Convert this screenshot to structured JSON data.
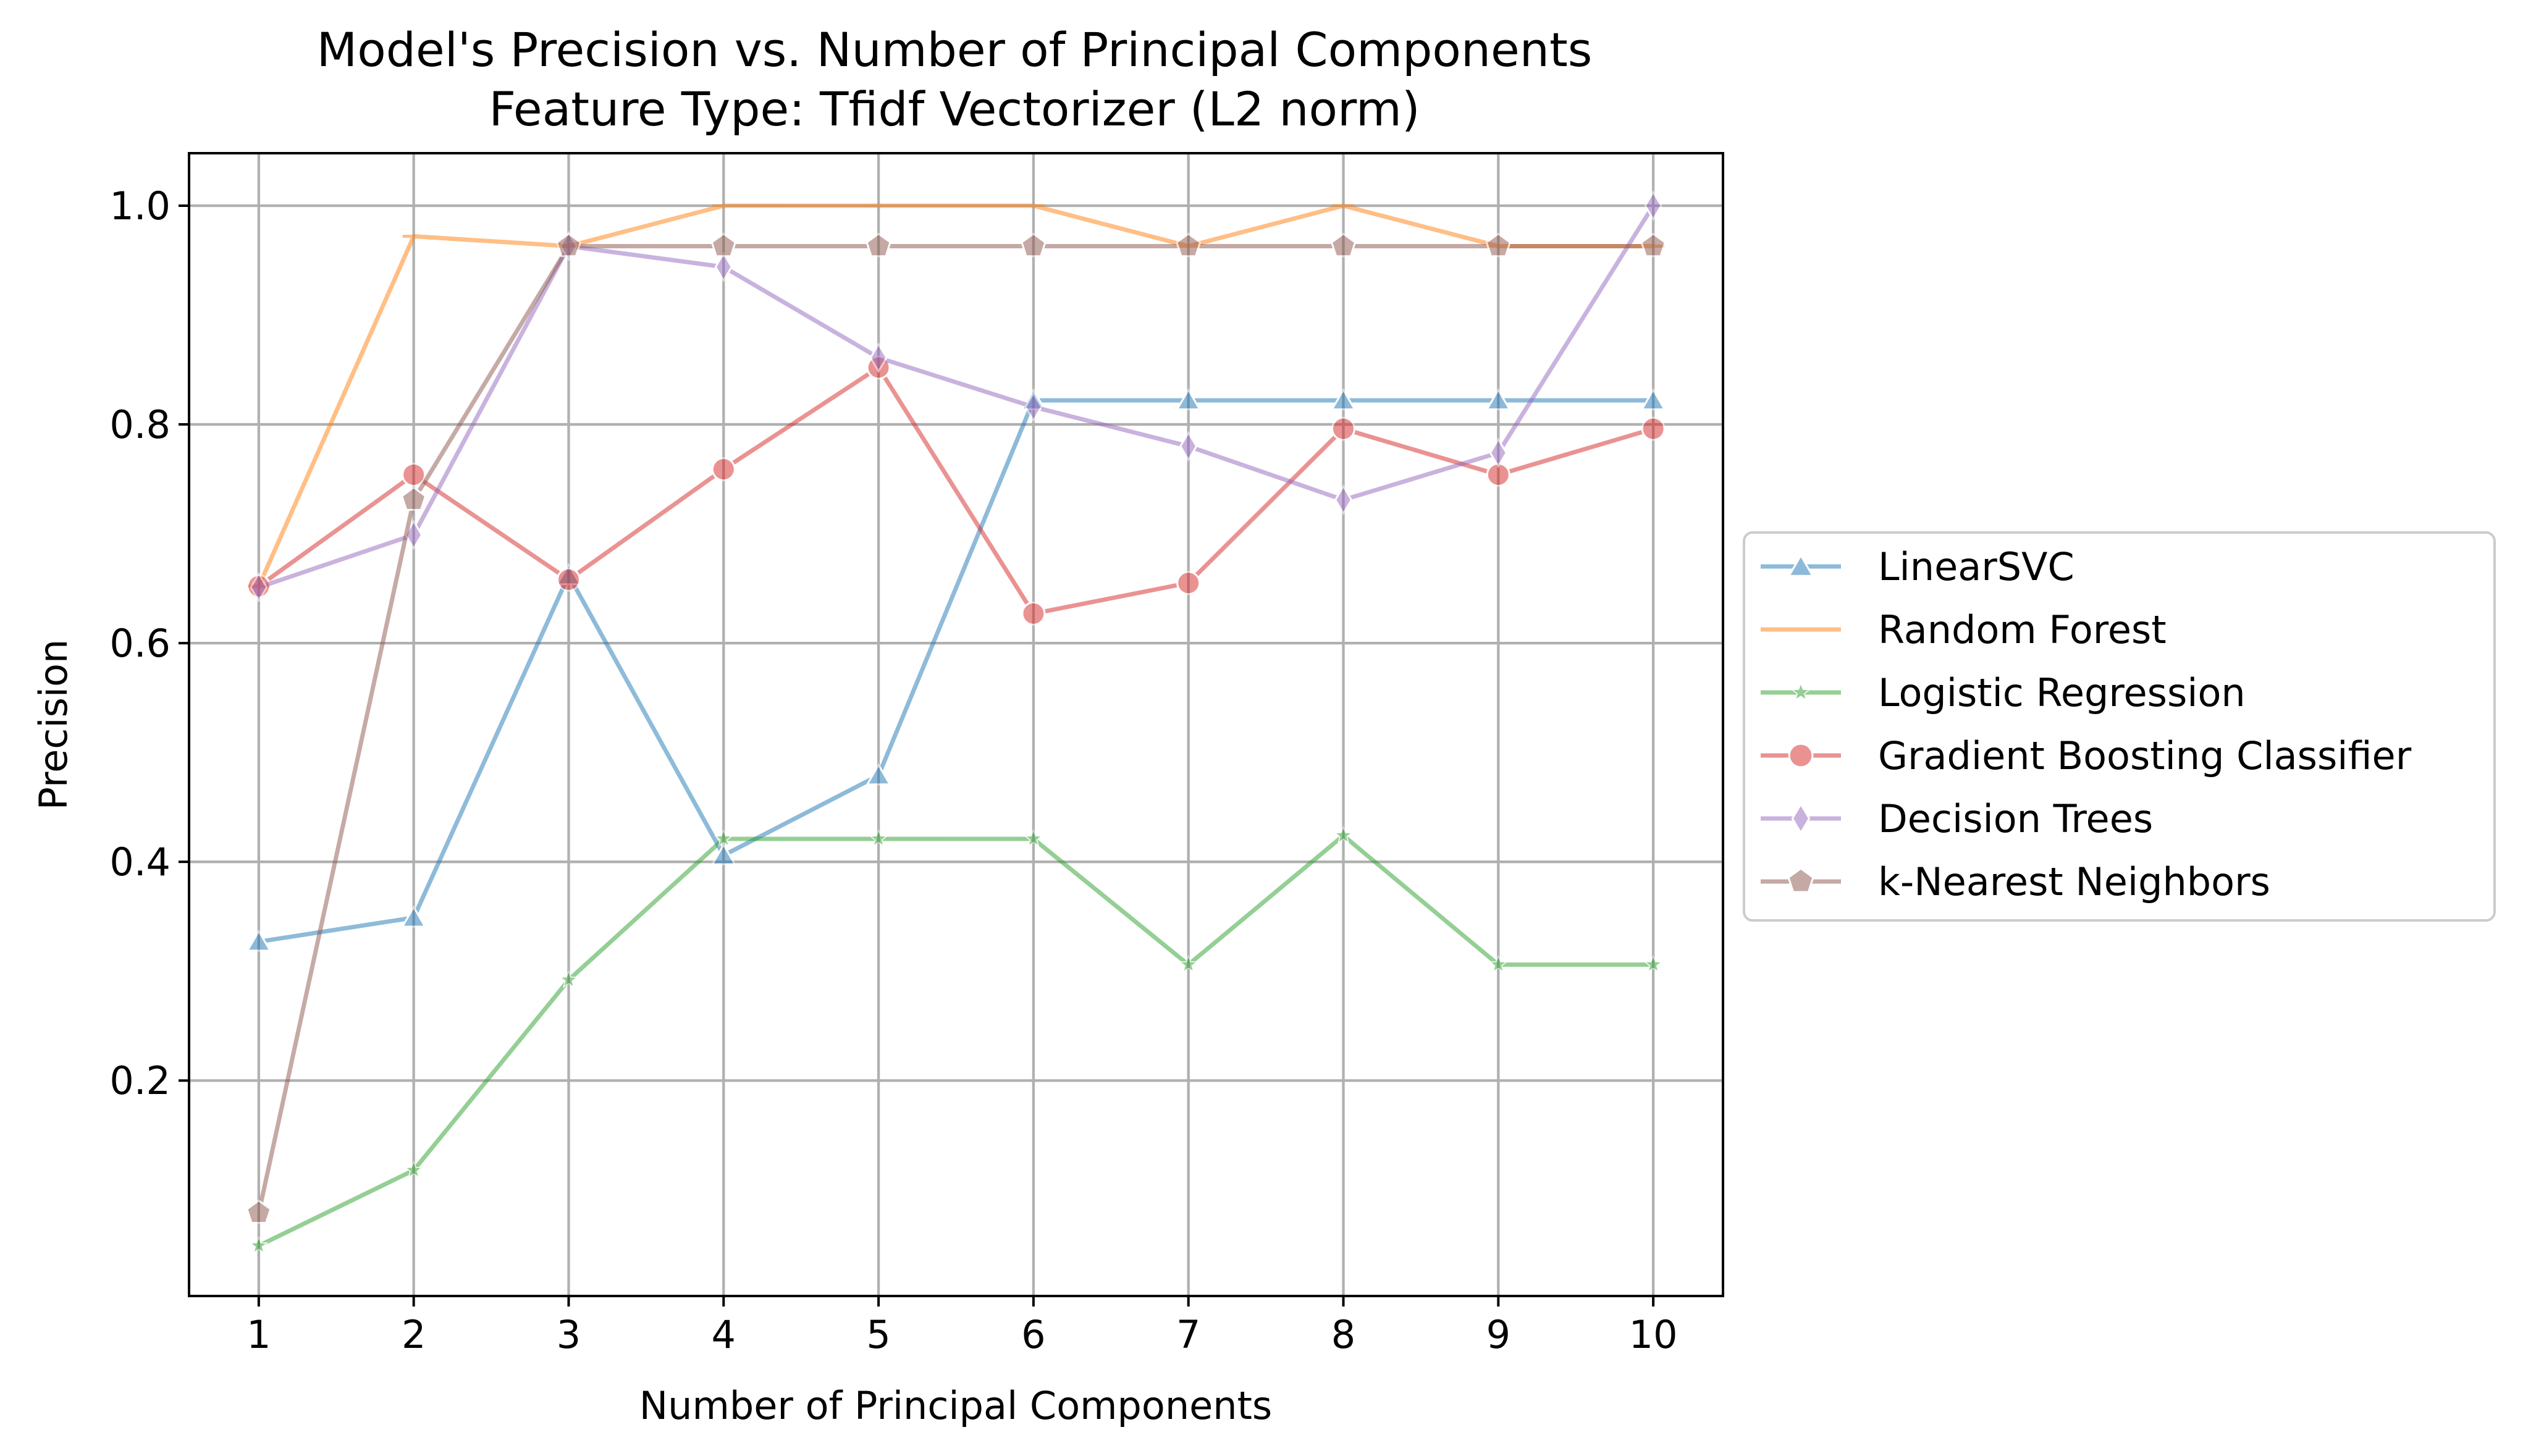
{
  "chart_data": {
    "type": "line",
    "title": "Model's Precision vs. Number of Principal Components",
    "subtitle": "Feature Type: Tfidf Vectorizer (L2 norm)",
    "xlabel": "Number of Principal Components",
    "ylabel": "Precision",
    "x": [
      1,
      2,
      3,
      4,
      5,
      6,
      7,
      8,
      9,
      10
    ],
    "xlim": [
      0.55,
      10.45
    ],
    "ylim": [
      0.003,
      1.048
    ],
    "xticks": [
      "1",
      "2",
      "3",
      "4",
      "5",
      "6",
      "7",
      "8",
      "9",
      "10"
    ],
    "yticks": [
      {
        "value": 0.2,
        "label": "0.2"
      },
      {
        "value": 0.4,
        "label": "0.4"
      },
      {
        "value": 0.6,
        "label": "0.6"
      },
      {
        "value": 0.8,
        "label": "0.8"
      },
      {
        "value": 1.0,
        "label": "1.0"
      }
    ],
    "grid": true,
    "legend_position": "right-outside",
    "series": [
      {
        "name": "LinearSVC",
        "color": "#1f77b4",
        "marker": "triangle",
        "values": [
          0.327,
          0.349,
          0.662,
          0.406,
          0.479,
          0.822,
          0.822,
          0.822,
          0.822,
          0.822
        ]
      },
      {
        "name": "Random Forest",
        "color": "#ff7f0e",
        "marker": "hline",
        "values": [
          0.652,
          0.972,
          0.963,
          1.0,
          1.0,
          1.0,
          0.963,
          1.0,
          0.963,
          0.963
        ]
      },
      {
        "name": "Logistic Regression",
        "color": "#2ca02c",
        "marker": "star",
        "values": [
          0.049,
          0.118,
          0.292,
          0.421,
          0.421,
          0.421,
          0.306,
          0.424,
          0.306,
          0.306
        ]
      },
      {
        "name": "Gradient Boosting Classifier",
        "color": "#d62728",
        "marker": "circle",
        "values": [
          0.652,
          0.754,
          0.658,
          0.759,
          0.852,
          0.627,
          0.655,
          0.796,
          0.754,
          0.796
        ]
      },
      {
        "name": "Decision Trees",
        "color": "#9467bd",
        "marker": "thin-diamond",
        "values": [
          0.651,
          0.699,
          0.963,
          0.944,
          0.861,
          0.816,
          0.78,
          0.731,
          0.774,
          1.0
        ]
      },
      {
        "name": "k-Nearest Neighbors",
        "color": "#8c564b",
        "marker": "pentagon",
        "values": [
          0.079,
          0.731,
          0.963,
          0.963,
          0.963,
          0.963,
          0.963,
          0.963,
          0.963,
          0.963
        ]
      }
    ]
  }
}
